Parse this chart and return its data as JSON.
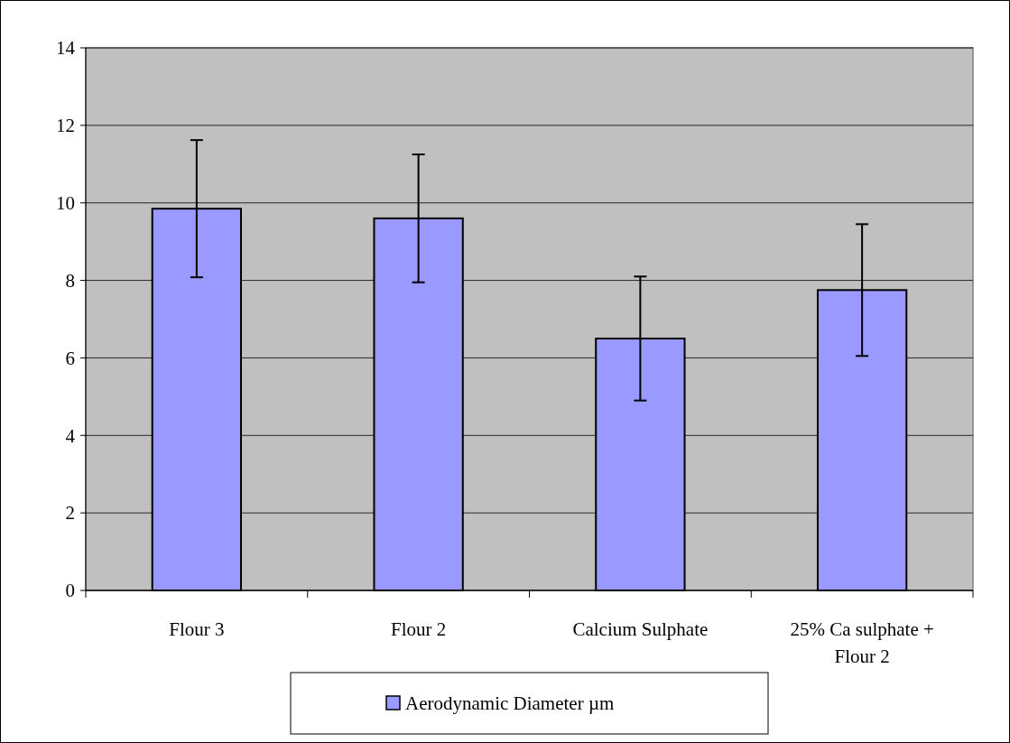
{
  "chart_data": {
    "type": "bar",
    "categories": [
      "Flour 3",
      "Flour 2",
      "Calcium Sulphate",
      "25% Ca sulphate + Flour 2"
    ],
    "series": [
      {
        "name": "Aerodynamic Diameter µm",
        "color": "#9999ff",
        "values": [
          9.85,
          9.6,
          6.5,
          7.75
        ],
        "errors": [
          1.77,
          1.65,
          1.6,
          1.7
        ]
      }
    ],
    "ylim": [
      0,
      14
    ],
    "yticks": [
      0,
      2,
      4,
      6,
      8,
      10,
      12,
      14
    ],
    "grid": "y",
    "legend": "bottom"
  }
}
